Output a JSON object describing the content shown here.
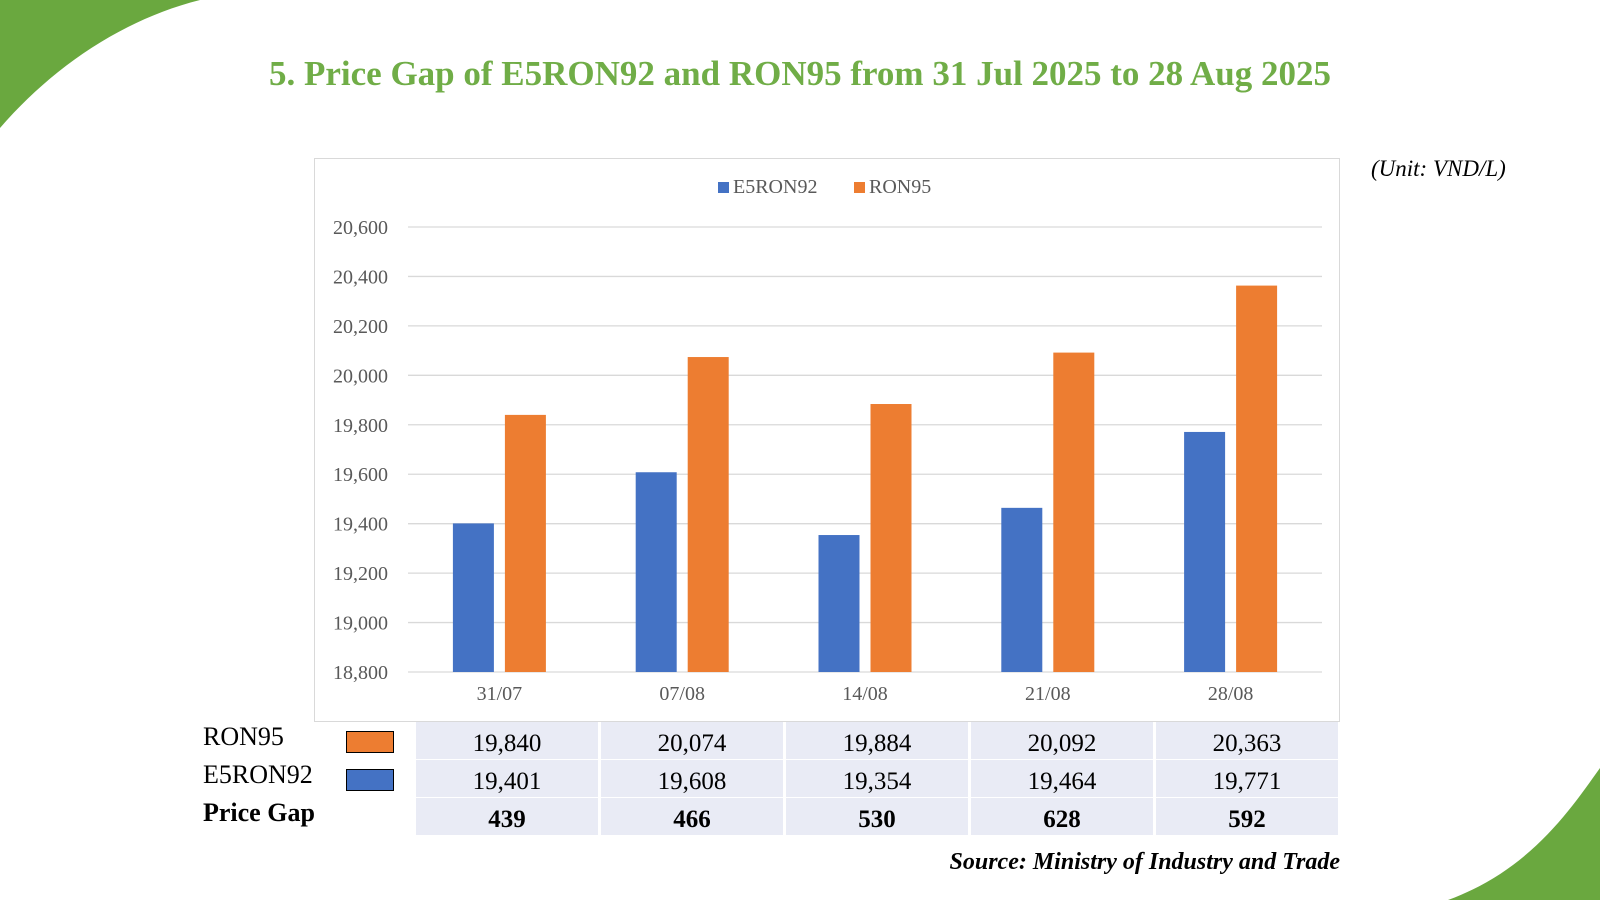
{
  "title": "5. Price Gap of E5RON92 and RON95 from 31 Jul 2025 to 28 Aug 2025",
  "unit_note": "(Unit: VND/L)",
  "source": "Source: Ministry of Industry and Trade",
  "colors": {
    "e5ron92": "#4472c4",
    "ron95": "#ed7d31",
    "accent": "#70ad47",
    "table_fill": "#e9ebf5"
  },
  "chart_data": {
    "type": "bar",
    "categories": [
      "31/07",
      "07/08",
      "14/08",
      "21/08",
      "28/08"
    ],
    "series": [
      {
        "name": "E5RON92",
        "values": [
          19401,
          19608,
          19354,
          19464,
          19771
        ],
        "color": "#4472c4"
      },
      {
        "name": "RON95",
        "values": [
          19840,
          20074,
          19884,
          20092,
          20363
        ],
        "color": "#ed7d31"
      }
    ],
    "ylim": [
      18800,
      20600
    ],
    "yticks": [
      "18,800",
      "19,000",
      "19,200",
      "19,400",
      "19,600",
      "19,800",
      "20,000",
      "20,200",
      "20,400",
      "20,600"
    ],
    "grid": true,
    "legend": "top-center"
  },
  "table": {
    "rows": [
      {
        "label": "RON95",
        "swatch": "ron95",
        "values": [
          "19,840",
          "20,074",
          "19,884",
          "20,092",
          "20,363"
        ]
      },
      {
        "label": "E5RON92",
        "swatch": "e5ron92",
        "values": [
          "19,401",
          "19,608",
          "19,354",
          "19,464",
          "19,771"
        ]
      },
      {
        "label": "Price Gap",
        "values": [
          "439",
          "466",
          "530",
          "628",
          "592"
        ]
      }
    ]
  }
}
